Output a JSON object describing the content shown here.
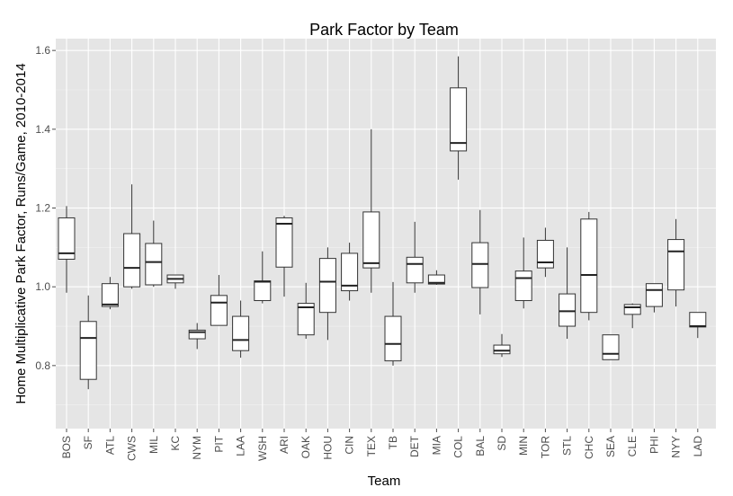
{
  "chart_data": {
    "type": "boxplot",
    "title": "Park Factor by Team",
    "xlabel": "Team",
    "ylabel": "Home Multiplicative Park Factor, Runs/Game, 2010-2014",
    "ylim": [
      0.64,
      1.63
    ],
    "yticks": [
      0.8,
      1.0,
      1.2,
      1.4,
      1.6
    ],
    "ytick_labels": [
      "0.8",
      "1.0",
      "1.2",
      "1.4",
      "1.6"
    ],
    "grid": true,
    "background": "#e5e5e5",
    "categories": [
      "BOS",
      "SF",
      "ATL",
      "CWS",
      "MIL",
      "KC",
      "NYM",
      "PIT",
      "LAA",
      "WSH",
      "ARI",
      "OAK",
      "HOU",
      "CIN",
      "TEX",
      "TB",
      "DET",
      "MIA",
      "COL",
      "BAL",
      "SD",
      "MIN",
      "TOR",
      "STL",
      "CHC",
      "SEA",
      "CLE",
      "PHI",
      "NYY",
      "LAD"
    ],
    "boxes": [
      {
        "team": "BOS",
        "min": 0.985,
        "q1": 1.07,
        "median": 1.085,
        "q3": 1.175,
        "max": 1.205
      },
      {
        "team": "SF",
        "min": 0.74,
        "q1": 0.765,
        "median": 0.87,
        "q3": 0.912,
        "max": 0.978
      },
      {
        "team": "ATL",
        "min": 0.943,
        "q1": 0.95,
        "median": 0.955,
        "q3": 1.008,
        "max": 1.025
      },
      {
        "team": "CWS",
        "min": 0.995,
        "q1": 1.0,
        "median": 1.048,
        "q3": 1.135,
        "max": 1.26
      },
      {
        "team": "MIL",
        "min": 1.0,
        "q1": 1.005,
        "median": 1.063,
        "q3": 1.11,
        "max": 1.168
      },
      {
        "team": "KC",
        "min": 0.995,
        "q1": 1.01,
        "median": 1.02,
        "q3": 1.03,
        "max": 1.03
      },
      {
        "team": "NYM",
        "min": 0.842,
        "q1": 0.868,
        "median": 0.885,
        "q3": 0.89,
        "max": 0.908
      },
      {
        "team": "PIT",
        "min": 0.902,
        "q1": 0.902,
        "median": 0.96,
        "q3": 0.978,
        "max": 1.03
      },
      {
        "team": "LAA",
        "min": 0.82,
        "q1": 0.838,
        "median": 0.865,
        "q3": 0.925,
        "max": 0.965
      },
      {
        "team": "WSH",
        "min": 0.958,
        "q1": 0.965,
        "median": 1.013,
        "q3": 1.015,
        "max": 1.09
      },
      {
        "team": "ARI",
        "min": 0.975,
        "q1": 1.05,
        "median": 1.16,
        "q3": 1.175,
        "max": 1.18
      },
      {
        "team": "OAK",
        "min": 0.868,
        "q1": 0.878,
        "median": 0.948,
        "q3": 0.958,
        "max": 1.01
      },
      {
        "team": "HOU",
        "min": 0.865,
        "q1": 0.935,
        "median": 1.013,
        "q3": 1.072,
        "max": 1.1
      },
      {
        "team": "CIN",
        "min": 0.965,
        "q1": 0.99,
        "median": 1.003,
        "q3": 1.085,
        "max": 1.112
      },
      {
        "team": "TEX",
        "min": 0.985,
        "q1": 1.048,
        "median": 1.06,
        "q3": 1.19,
        "max": 1.4
      },
      {
        "team": "TB",
        "min": 0.8,
        "q1": 0.812,
        "median": 0.855,
        "q3": 0.925,
        "max": 1.012
      },
      {
        "team": "DET",
        "min": 0.985,
        "q1": 1.01,
        "median": 1.058,
        "q3": 1.075,
        "max": 1.165
      },
      {
        "team": "MIA",
        "min": 1.005,
        "q1": 1.007,
        "median": 1.01,
        "q3": 1.03,
        "max": 1.042
      },
      {
        "team": "COL",
        "min": 1.272,
        "q1": 1.345,
        "median": 1.365,
        "q3": 1.505,
        "max": 1.585
      },
      {
        "team": "BAL",
        "min": 0.93,
        "q1": 0.998,
        "median": 1.058,
        "q3": 1.112,
        "max": 1.195
      },
      {
        "team": "SD",
        "min": 0.822,
        "q1": 0.83,
        "median": 0.838,
        "q3": 0.852,
        "max": 0.88
      },
      {
        "team": "MIN",
        "min": 0.945,
        "q1": 0.965,
        "median": 1.022,
        "q3": 1.04,
        "max": 1.125
      },
      {
        "team": "TOR",
        "min": 1.025,
        "q1": 1.048,
        "median": 1.062,
        "q3": 1.118,
        "max": 1.15
      },
      {
        "team": "STL",
        "min": 0.868,
        "q1": 0.9,
        "median": 0.938,
        "q3": 0.982,
        "max": 1.1
      },
      {
        "team": "CHC",
        "min": 0.915,
        "q1": 0.935,
        "median": 1.03,
        "q3": 1.172,
        "max": 1.19
      },
      {
        "team": "SEA",
        "min": 0.815,
        "q1": 0.815,
        "median": 0.83,
        "q3": 0.878,
        "max": 0.878
      },
      {
        "team": "CLE",
        "min": 0.895,
        "q1": 0.93,
        "median": 0.948,
        "q3": 0.955,
        "max": 0.958
      },
      {
        "team": "PHI",
        "min": 0.935,
        "q1": 0.95,
        "median": 0.992,
        "q3": 1.008,
        "max": 1.008
      },
      {
        "team": "NYY",
        "min": 0.95,
        "q1": 0.992,
        "median": 1.09,
        "q3": 1.12,
        "max": 1.172
      },
      {
        "team": "LAD",
        "min": 0.87,
        "q1": 0.898,
        "median": 0.9,
        "q3": 0.935,
        "max": 0.935
      }
    ]
  }
}
